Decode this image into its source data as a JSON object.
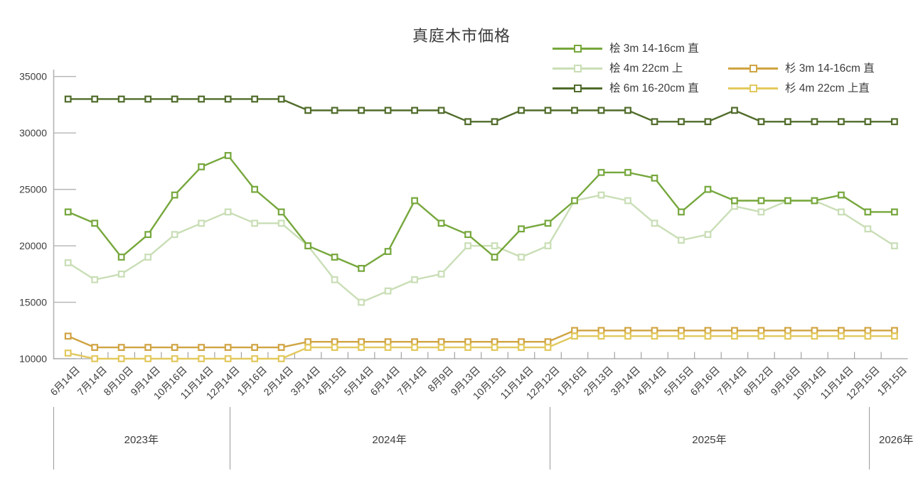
{
  "title": "真庭木市価格",
  "chart_data": {
    "type": "line",
    "title": "真庭木市価格",
    "ylim": [
      10000,
      35000
    ],
    "y_ticks": [
      10000,
      15000,
      20000,
      25000,
      30000,
      35000
    ],
    "grid": false,
    "legend_position": "top-right, two columns",
    "x_labels": [
      "6月14日",
      "7月14日",
      "8月10日",
      "9月14日",
      "10月16日",
      "11月14日",
      "12月14日",
      "1月16日",
      "2月14日",
      "3月14日",
      "4月15日",
      "5月14日",
      "6月14日",
      "7月14日",
      "8月9日",
      "9月13日",
      "10月15日",
      "11月14日",
      "12月12日",
      "1月16日",
      "2月13日",
      "3月14日",
      "4月14日",
      "5月15日",
      "6月16日",
      "7月14日",
      "8月12日",
      "9月16日",
      "10月14日",
      "11月14日",
      "12月15日",
      "1月15日"
    ],
    "year_groups": [
      {
        "label": "2023年",
        "count": 7
      },
      {
        "label": "2024年",
        "count": 12
      },
      {
        "label": "2025年",
        "count": 12
      },
      {
        "label": "2026年",
        "count": 1
      }
    ],
    "series": [
      {
        "name": "桧 3m 14-16cm 直",
        "color": "#76a73c",
        "values": [
          23000,
          22000,
          19000,
          21000,
          24500,
          27000,
          28000,
          25000,
          23000,
          20000,
          19000,
          18000,
          19500,
          24000,
          22000,
          21000,
          19000,
          21500,
          22000,
          24000,
          26500,
          26500,
          26000,
          23000,
          25000,
          24000,
          24000,
          24000,
          24000,
          24500,
          23000,
          23000
        ]
      },
      {
        "name": "桧 4m 22cm 上",
        "color": "#c9deb6",
        "values": [
          18500,
          17000,
          17500,
          19000,
          21000,
          22000,
          23000,
          22000,
          22000,
          20000,
          17000,
          15000,
          16000,
          17000,
          17500,
          20000,
          20000,
          19000,
          20000,
          24000,
          24500,
          24000,
          22000,
          20500,
          21000,
          23500,
          23000,
          24000,
          24000,
          23000,
          21500,
          20000
        ]
      },
      {
        "name": "桧 6m 16-20cm 直",
        "color": "#506c2a",
        "values": [
          33000,
          33000,
          33000,
          33000,
          33000,
          33000,
          33000,
          33000,
          33000,
          32000,
          32000,
          32000,
          32000,
          32000,
          32000,
          31000,
          31000,
          32000,
          32000,
          32000,
          32000,
          32000,
          31000,
          31000,
          31000,
          32000,
          31000,
          31000,
          31000,
          31000,
          31000,
          31000
        ]
      },
      {
        "name": "杉 3m 14-16cm 直",
        "color": "#d0a442",
        "values": [
          12000,
          11000,
          11000,
          11000,
          11000,
          11000,
          11000,
          11000,
          11000,
          11500,
          11500,
          11500,
          11500,
          11500,
          11500,
          11500,
          11500,
          11500,
          11500,
          12500,
          12500,
          12500,
          12500,
          12500,
          12500,
          12500,
          12500,
          12500,
          12500,
          12500,
          12500,
          12500
        ]
      },
      {
        "name": "杉 4m 22cm 上直",
        "color": "#e2c95e",
        "values": [
          10500,
          10000,
          10000,
          10000,
          10000,
          10000,
          10000,
          10000,
          10000,
          11000,
          11000,
          11000,
          11000,
          11000,
          11000,
          11000,
          11000,
          11000,
          11000,
          12000,
          12000,
          12000,
          12000,
          12000,
          12000,
          12000,
          12000,
          12000,
          12000,
          12000,
          12000,
          12000
        ]
      }
    ]
  }
}
